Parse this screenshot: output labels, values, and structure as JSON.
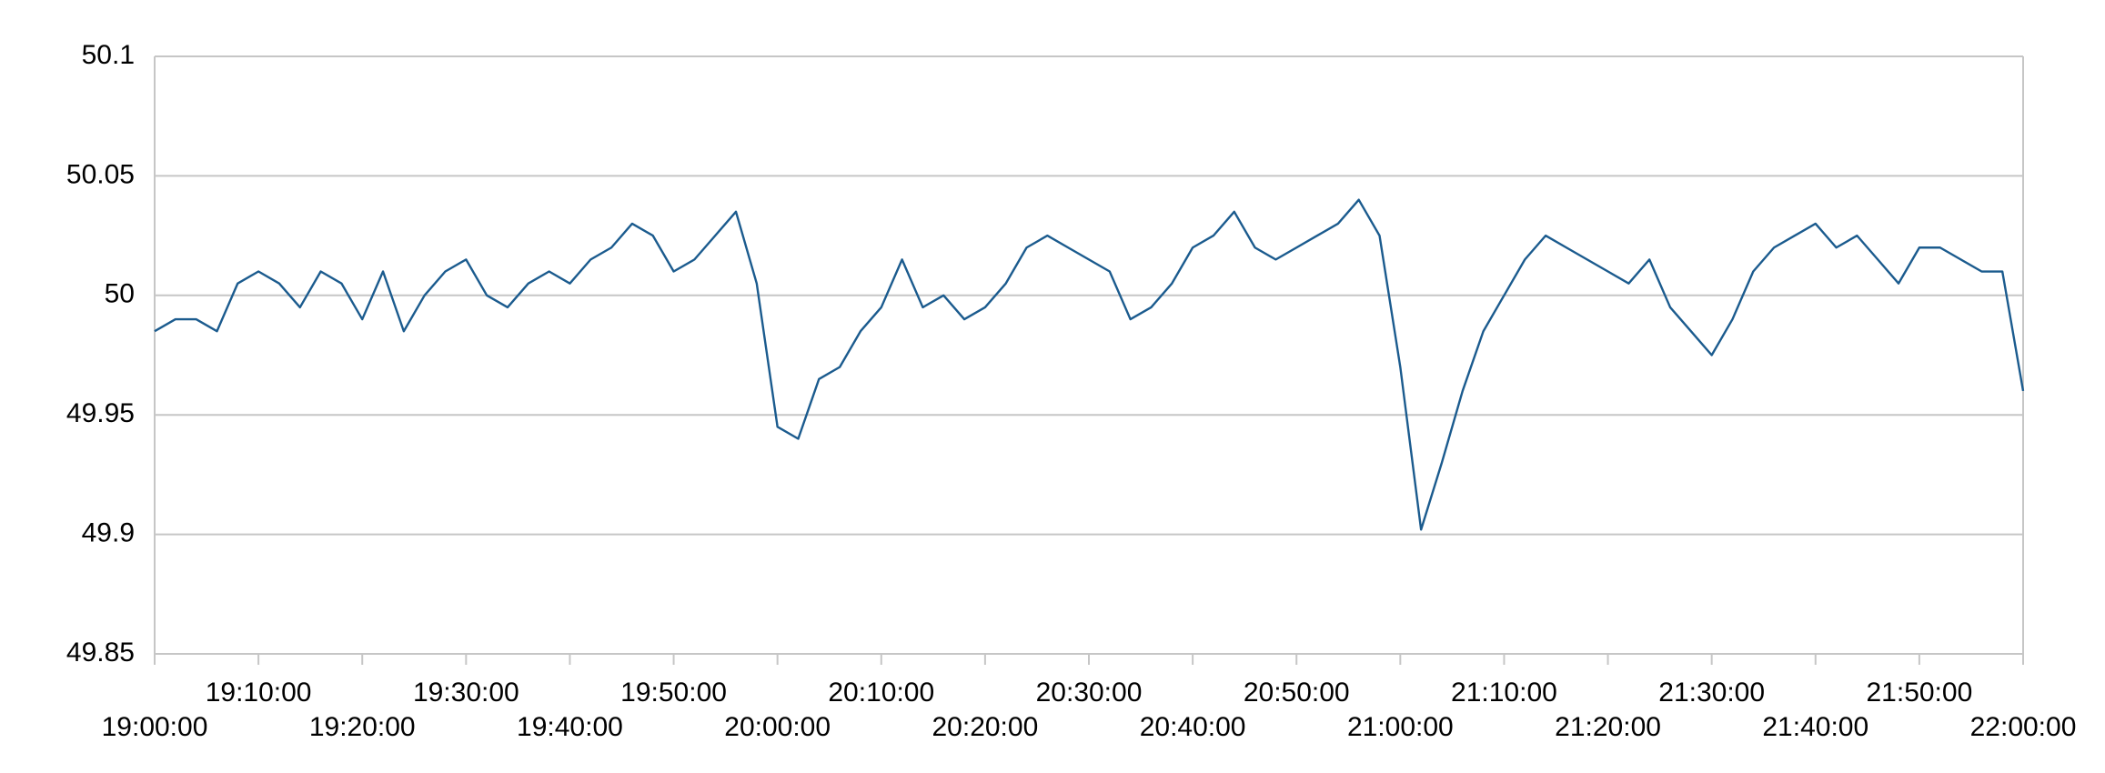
{
  "chart_data": {
    "type": "line",
    "x": [
      "19:00:00",
      "19:02:00",
      "19:04:00",
      "19:06:00",
      "19:08:00",
      "19:10:00",
      "19:12:00",
      "19:14:00",
      "19:16:00",
      "19:18:00",
      "19:20:00",
      "19:22:00",
      "19:24:00",
      "19:26:00",
      "19:28:00",
      "19:30:00",
      "19:32:00",
      "19:34:00",
      "19:36:00",
      "19:38:00",
      "19:40:00",
      "19:42:00",
      "19:44:00",
      "19:46:00",
      "19:48:00",
      "19:50:00",
      "19:52:00",
      "19:54:00",
      "19:56:00",
      "19:58:00",
      "20:00:00",
      "20:02:00",
      "20:04:00",
      "20:06:00",
      "20:08:00",
      "20:10:00",
      "20:12:00",
      "20:14:00",
      "20:16:00",
      "20:18:00",
      "20:20:00",
      "20:22:00",
      "20:24:00",
      "20:26:00",
      "20:28:00",
      "20:30:00",
      "20:32:00",
      "20:34:00",
      "20:36:00",
      "20:38:00",
      "20:40:00",
      "20:42:00",
      "20:44:00",
      "20:46:00",
      "20:48:00",
      "20:50:00",
      "20:52:00",
      "20:54:00",
      "20:56:00",
      "20:58:00",
      "21:00:00",
      "21:02:00",
      "21:04:00",
      "21:06:00",
      "21:08:00",
      "21:10:00",
      "21:12:00",
      "21:14:00",
      "21:16:00",
      "21:18:00",
      "21:20:00",
      "21:22:00",
      "21:24:00",
      "21:26:00",
      "21:28:00",
      "21:30:00",
      "21:32:00",
      "21:34:00",
      "21:36:00",
      "21:38:00",
      "21:40:00",
      "21:42:00",
      "21:44:00",
      "21:46:00",
      "21:48:00",
      "21:50:00",
      "21:52:00",
      "21:54:00",
      "21:56:00",
      "21:58:00",
      "22:00:00"
    ],
    "series": [
      {
        "color": "#1b5b8e",
        "values": [
          49.985,
          49.99,
          49.99,
          49.985,
          50.005,
          50.01,
          50.005,
          49.995,
          50.01,
          50.005,
          49.99,
          50.01,
          49.985,
          50.0,
          50.01,
          50.015,
          50.0,
          49.995,
          50.005,
          50.01,
          50.005,
          50.015,
          50.02,
          50.03,
          50.025,
          50.01,
          50.015,
          50.025,
          50.035,
          50.005,
          49.945,
          49.94,
          49.965,
          49.97,
          49.985,
          49.995,
          50.015,
          49.995,
          50.0,
          49.99,
          49.995,
          50.005,
          50.02,
          50.025,
          50.02,
          50.015,
          50.01,
          49.99,
          49.995,
          50.005,
          50.02,
          50.025,
          50.035,
          50.02,
          50.015,
          50.02,
          50.025,
          50.03,
          50.04,
          50.025,
          49.97,
          49.902,
          49.93,
          49.96,
          49.985,
          50.0,
          50.015,
          50.025,
          50.02,
          50.015,
          50.01,
          50.005,
          50.015,
          49.995,
          49.985,
          49.975,
          49.99,
          50.01,
          50.02,
          50.025,
          50.03,
          50.02,
          50.025,
          50.015,
          50.005,
          50.02,
          50.02,
          50.015,
          50.01,
          50.01,
          49.96
        ]
      }
    ],
    "xlim": [
      "19:00:00",
      "22:00:00"
    ],
    "xticks": [
      "19:00:00",
      "19:10:00",
      "19:20:00",
      "19:30:00",
      "19:40:00",
      "19:50:00",
      "20:00:00",
      "20:10:00",
      "20:20:00",
      "20:30:00",
      "20:40:00",
      "20:50:00",
      "21:00:00",
      "21:10:00",
      "21:20:00",
      "21:30:00",
      "21:40:00",
      "21:50:00",
      "22:00:00"
    ],
    "ylim": [
      49.85,
      50.1
    ],
    "yticks": [
      49.85,
      49.9,
      49.95,
      50,
      50.05,
      50.1
    ],
    "grid": true
  }
}
